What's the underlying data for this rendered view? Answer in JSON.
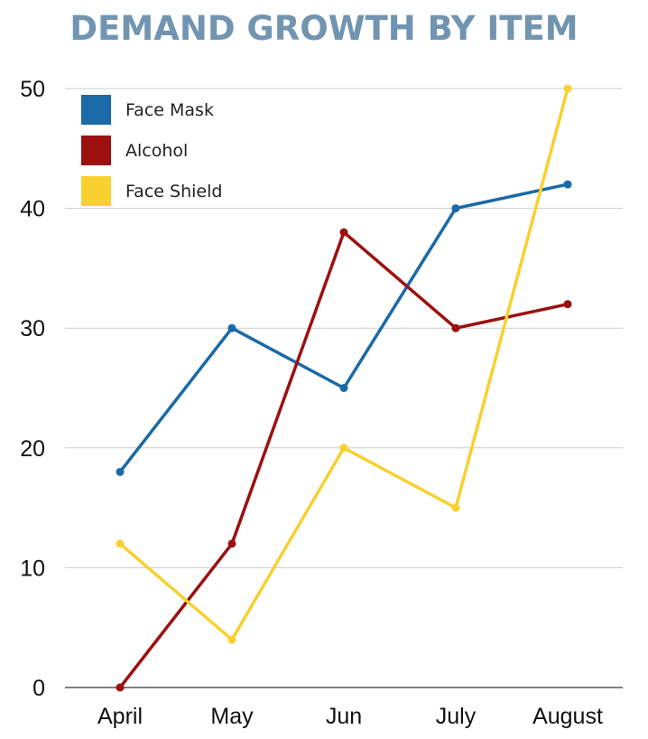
{
  "chart_data": {
    "type": "line",
    "title": "DEMAND GROWTH BY ITEM",
    "xlabel": "",
    "ylabel": "",
    "categories": [
      "April",
      "May",
      "Jun",
      "July",
      "August"
    ],
    "ylim": [
      0,
      50
    ],
    "yticks": [
      0,
      10,
      20,
      30,
      40,
      50
    ],
    "grid": true,
    "legend": "top-left",
    "series": [
      {
        "name": "Face Mask",
        "color": "#1a6aa8",
        "values": [
          18,
          30,
          25,
          40,
          42
        ]
      },
      {
        "name": "Alcohol",
        "color": "#9c1010",
        "values": [
          0,
          12,
          38,
          30,
          32
        ]
      },
      {
        "name": "Face Shield",
        "color": "#f8d030",
        "values": [
          12,
          4,
          20,
          15,
          50
        ]
      }
    ]
  }
}
